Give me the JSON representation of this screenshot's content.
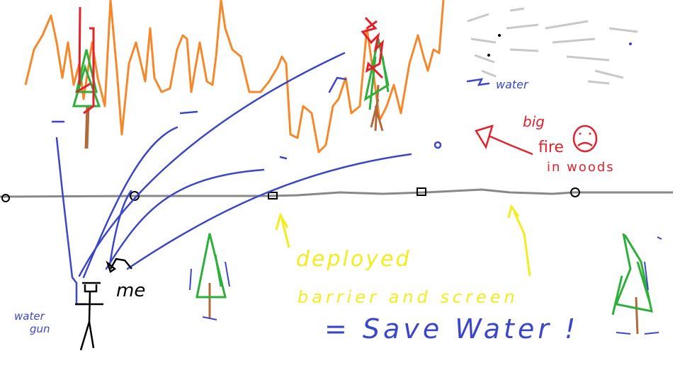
{
  "labels": {
    "me": "me",
    "water_gun_line1": "water",
    "water_gun_line2": "gun",
    "water": "water",
    "big": "big",
    "fire": "fire",
    "in_woods": "in woods",
    "deployed": "deployed",
    "barrier_and_screen": "barrier and screen",
    "save_water": "= Save Water !"
  },
  "colors": {
    "fire": "#f5882b",
    "water": "#3b46c8",
    "tree_foliage": "#2eae3a",
    "tree_trunk": "#b06a3b",
    "burning": "#e3212b",
    "barrier_line": "#888888",
    "highlight": "#f5ec1f",
    "smoke": "#c8c8c8",
    "ink": "#000000"
  }
}
